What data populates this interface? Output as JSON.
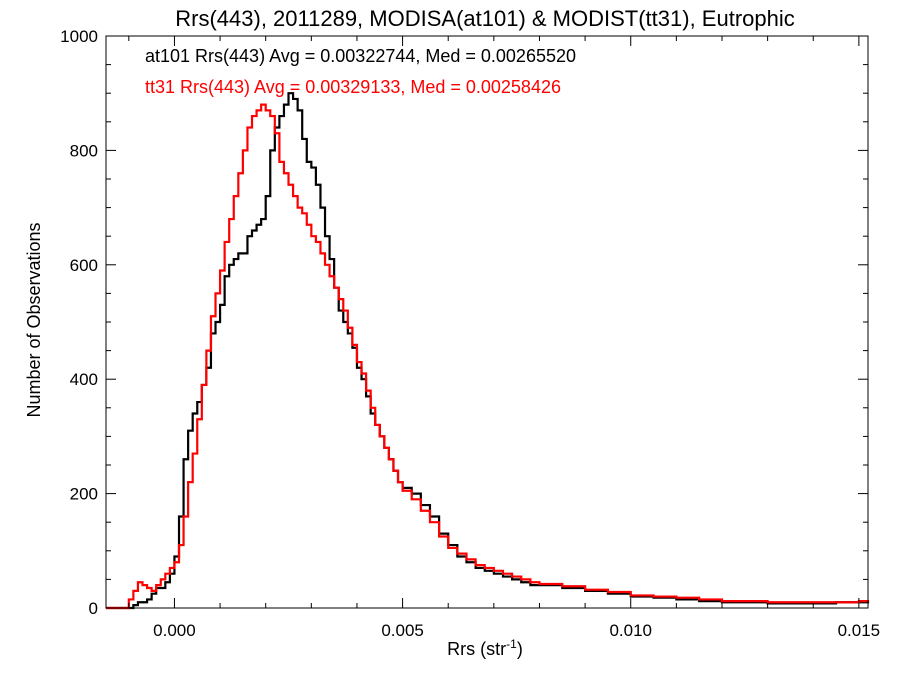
{
  "chart_data": {
    "type": "histogram",
    "title": "Rrs(443), 2011289, MODISA(at101) & MODIST(tt31), Eutrophic",
    "xlabel": "Rrs (str",
    "xlabel_sup": "-1",
    "xlabel_close": ")",
    "ylabel": "Number of Observations",
    "xlim": [
      -0.0015,
      0.0152
    ],
    "ylim": [
      0,
      1000
    ],
    "x_ticks": [
      0.0,
      0.005,
      0.01,
      0.015
    ],
    "x_tick_labels": [
      "0.000",
      "0.005",
      "0.010",
      "0.015"
    ],
    "y_ticks": [
      0,
      200,
      400,
      600,
      800,
      1000
    ],
    "y_tick_labels": [
      "0",
      "200",
      "400",
      "600",
      "800",
      "1000"
    ],
    "grid": false,
    "annotations": [
      {
        "text": "at101 Rrs(443) Avg = 0.00322744, Med = 0.00265520",
        "color": "#000000"
      },
      {
        "text": "tt31 Rrs(443) Avg = 0.00329133, Med = 0.00258426",
        "color": "#ff0000"
      }
    ],
    "series": [
      {
        "color": "#000000",
        "points": [
          [
            -0.0015,
            0
          ],
          [
            -0.001,
            0
          ],
          [
            -0.0009,
            5
          ],
          [
            -0.0008,
            10
          ],
          [
            -0.0006,
            15
          ],
          [
            -0.0005,
            25
          ],
          [
            -0.0004,
            35
          ],
          [
            -0.0002,
            45
          ],
          [
            -0.0001,
            60
          ],
          [
            0.0,
            90
          ],
          [
            0.0001,
            160
          ],
          [
            0.0002,
            260
          ],
          [
            0.0003,
            310
          ],
          [
            0.0004,
            340
          ],
          [
            0.0005,
            360
          ],
          [
            0.0006,
            390
          ],
          [
            0.0007,
            420
          ],
          [
            0.0008,
            480
          ],
          [
            0.0009,
            500
          ],
          [
            0.001,
            530
          ],
          [
            0.0011,
            580
          ],
          [
            0.0012,
            600
          ],
          [
            0.0013,
            610
          ],
          [
            0.0014,
            620
          ],
          [
            0.0015,
            620
          ],
          [
            0.0016,
            650
          ],
          [
            0.0017,
            660
          ],
          [
            0.0018,
            670
          ],
          [
            0.0019,
            680
          ],
          [
            0.002,
            720
          ],
          [
            0.0021,
            800
          ],
          [
            0.0022,
            840
          ],
          [
            0.0023,
            860
          ],
          [
            0.0024,
            880
          ],
          [
            0.0025,
            900
          ],
          [
            0.0026,
            890
          ],
          [
            0.0027,
            870
          ],
          [
            0.0028,
            820
          ],
          [
            0.0029,
            780
          ],
          [
            0.003,
            770
          ],
          [
            0.0031,
            740
          ],
          [
            0.0032,
            700
          ],
          [
            0.0033,
            650
          ],
          [
            0.0034,
            610
          ],
          [
            0.0035,
            560
          ],
          [
            0.0036,
            520
          ],
          [
            0.0037,
            500
          ],
          [
            0.0038,
            480
          ],
          [
            0.0039,
            455
          ],
          [
            0.004,
            420
          ],
          [
            0.0041,
            400
          ],
          [
            0.0042,
            370
          ],
          [
            0.0043,
            340
          ],
          [
            0.0044,
            320
          ],
          [
            0.0045,
            300
          ],
          [
            0.0046,
            280
          ],
          [
            0.0047,
            260
          ],
          [
            0.0048,
            240
          ],
          [
            0.0049,
            220
          ],
          [
            0.005,
            210
          ],
          [
            0.0052,
            200
          ],
          [
            0.0054,
            180
          ],
          [
            0.0056,
            160
          ],
          [
            0.0058,
            130
          ],
          [
            0.006,
            110
          ],
          [
            0.0062,
            90
          ],
          [
            0.0064,
            80
          ],
          [
            0.0066,
            70
          ],
          [
            0.0068,
            65
          ],
          [
            0.007,
            60
          ],
          [
            0.0072,
            55
          ],
          [
            0.0074,
            50
          ],
          [
            0.0076,
            45
          ],
          [
            0.0078,
            40
          ],
          [
            0.008,
            40
          ],
          [
            0.0085,
            35
          ],
          [
            0.009,
            30
          ],
          [
            0.0095,
            25
          ],
          [
            0.01,
            20
          ],
          [
            0.0105,
            18
          ],
          [
            0.011,
            15
          ],
          [
            0.0115,
            12
          ],
          [
            0.012,
            10
          ],
          [
            0.0125,
            10
          ],
          [
            0.013,
            8
          ],
          [
            0.0135,
            8
          ],
          [
            0.014,
            8
          ],
          [
            0.0145,
            10
          ],
          [
            0.015,
            10
          ],
          [
            0.0152,
            8
          ]
        ]
      },
      {
        "color": "#ff0000",
        "points": [
          [
            -0.0015,
            0
          ],
          [
            -0.0011,
            0
          ],
          [
            -0.001,
            15
          ],
          [
            -0.0009,
            30
          ],
          [
            -0.0008,
            45
          ],
          [
            -0.0007,
            40
          ],
          [
            -0.0006,
            35
          ],
          [
            -0.0005,
            30
          ],
          [
            -0.0004,
            40
          ],
          [
            -0.0003,
            50
          ],
          [
            -0.0002,
            60
          ],
          [
            -0.0001,
            70
          ],
          [
            0.0,
            80
          ],
          [
            0.0001,
            110
          ],
          [
            0.0002,
            160
          ],
          [
            0.0003,
            220
          ],
          [
            0.0004,
            270
          ],
          [
            0.0005,
            330
          ],
          [
            0.0006,
            390
          ],
          [
            0.0007,
            450
          ],
          [
            0.0008,
            510
          ],
          [
            0.0009,
            550
          ],
          [
            0.001,
            590
          ],
          [
            0.0011,
            640
          ],
          [
            0.0012,
            680
          ],
          [
            0.0013,
            720
          ],
          [
            0.0014,
            760
          ],
          [
            0.0015,
            800
          ],
          [
            0.0016,
            840
          ],
          [
            0.0017,
            860
          ],
          [
            0.0018,
            870
          ],
          [
            0.0019,
            880
          ],
          [
            0.002,
            870
          ],
          [
            0.0021,
            860
          ],
          [
            0.0022,
            830
          ],
          [
            0.0023,
            780
          ],
          [
            0.0024,
            760
          ],
          [
            0.0025,
            740
          ],
          [
            0.0026,
            720
          ],
          [
            0.0027,
            700
          ],
          [
            0.0028,
            690
          ],
          [
            0.0029,
            670
          ],
          [
            0.003,
            650
          ],
          [
            0.0031,
            640
          ],
          [
            0.0032,
            620
          ],
          [
            0.0033,
            600
          ],
          [
            0.0034,
            580
          ],
          [
            0.0035,
            560
          ],
          [
            0.0036,
            540
          ],
          [
            0.0037,
            520
          ],
          [
            0.0038,
            490
          ],
          [
            0.0039,
            460
          ],
          [
            0.004,
            430
          ],
          [
            0.0041,
            410
          ],
          [
            0.0042,
            380
          ],
          [
            0.0043,
            350
          ],
          [
            0.0044,
            320
          ],
          [
            0.0045,
            300
          ],
          [
            0.0046,
            280
          ],
          [
            0.0047,
            260
          ],
          [
            0.0048,
            240
          ],
          [
            0.0049,
            220
          ],
          [
            0.005,
            205
          ],
          [
            0.0052,
            190
          ],
          [
            0.0054,
            170
          ],
          [
            0.0056,
            150
          ],
          [
            0.0058,
            125
          ],
          [
            0.006,
            105
          ],
          [
            0.0062,
            95
          ],
          [
            0.0064,
            85
          ],
          [
            0.0066,
            75
          ],
          [
            0.0068,
            70
          ],
          [
            0.007,
            65
          ],
          [
            0.0072,
            60
          ],
          [
            0.0074,
            55
          ],
          [
            0.0076,
            50
          ],
          [
            0.0078,
            45
          ],
          [
            0.008,
            42
          ],
          [
            0.0085,
            38
          ],
          [
            0.009,
            32
          ],
          [
            0.0095,
            28
          ],
          [
            0.01,
            22
          ],
          [
            0.0105,
            20
          ],
          [
            0.011,
            18
          ],
          [
            0.0115,
            15
          ],
          [
            0.012,
            12
          ],
          [
            0.0125,
            12
          ],
          [
            0.013,
            10
          ],
          [
            0.0135,
            10
          ],
          [
            0.014,
            10
          ],
          [
            0.0145,
            10
          ],
          [
            0.015,
            12
          ],
          [
            0.0152,
            10
          ]
        ]
      }
    ]
  }
}
